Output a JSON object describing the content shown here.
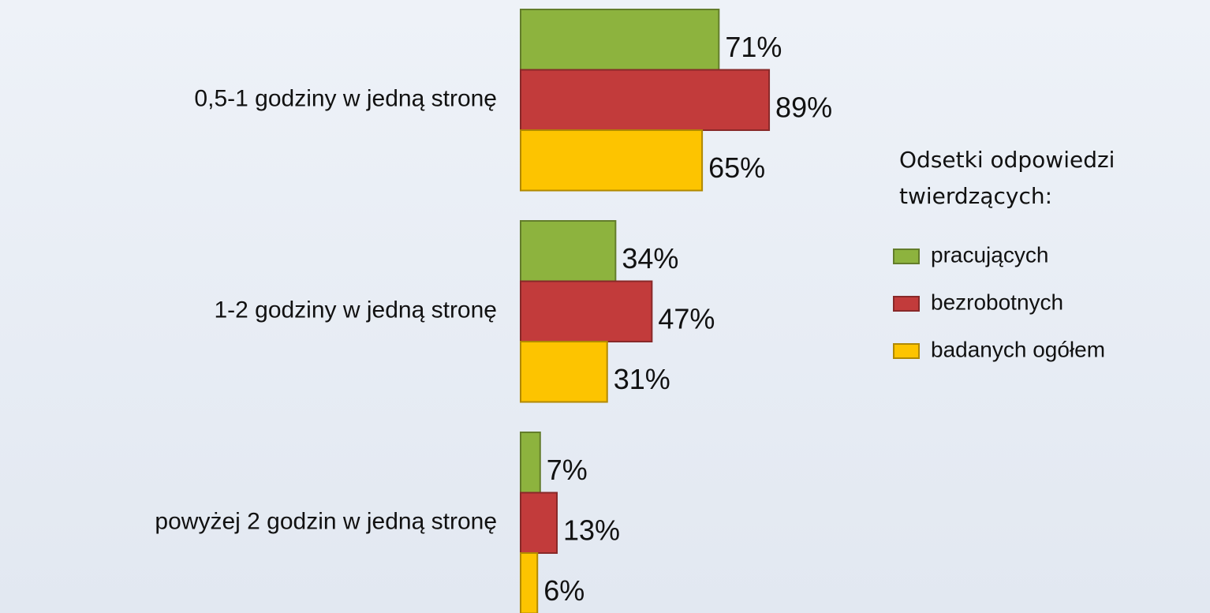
{
  "chart_data": {
    "type": "bar",
    "orientation": "horizontal",
    "categories": [
      "0,5-1 godziny w jedną stronę",
      "1-2 godziny w jedną stronę",
      "powyżej 2 godzin w jedną stronę"
    ],
    "legend_title": "Odsetki odpowiedzi twierdzących:",
    "series": [
      {
        "name": "pracujących",
        "color": "#8db33e",
        "values": [
          71,
          34,
          7
        ],
        "value_labels": [
          "71%",
          "34%",
          "7%"
        ]
      },
      {
        "name": "bezrobotnych",
        "color": "#c23b3b",
        "values": [
          89,
          47,
          13
        ],
        "value_labels": [
          "89%",
          "47%",
          "13%"
        ]
      },
      {
        "name": "badanych ogółem",
        "color": "#fdc400",
        "values": [
          65,
          31,
          6
        ],
        "value_labels": [
          "65%",
          "31%",
          "6%"
        ]
      }
    ],
    "legend": "right"
  }
}
